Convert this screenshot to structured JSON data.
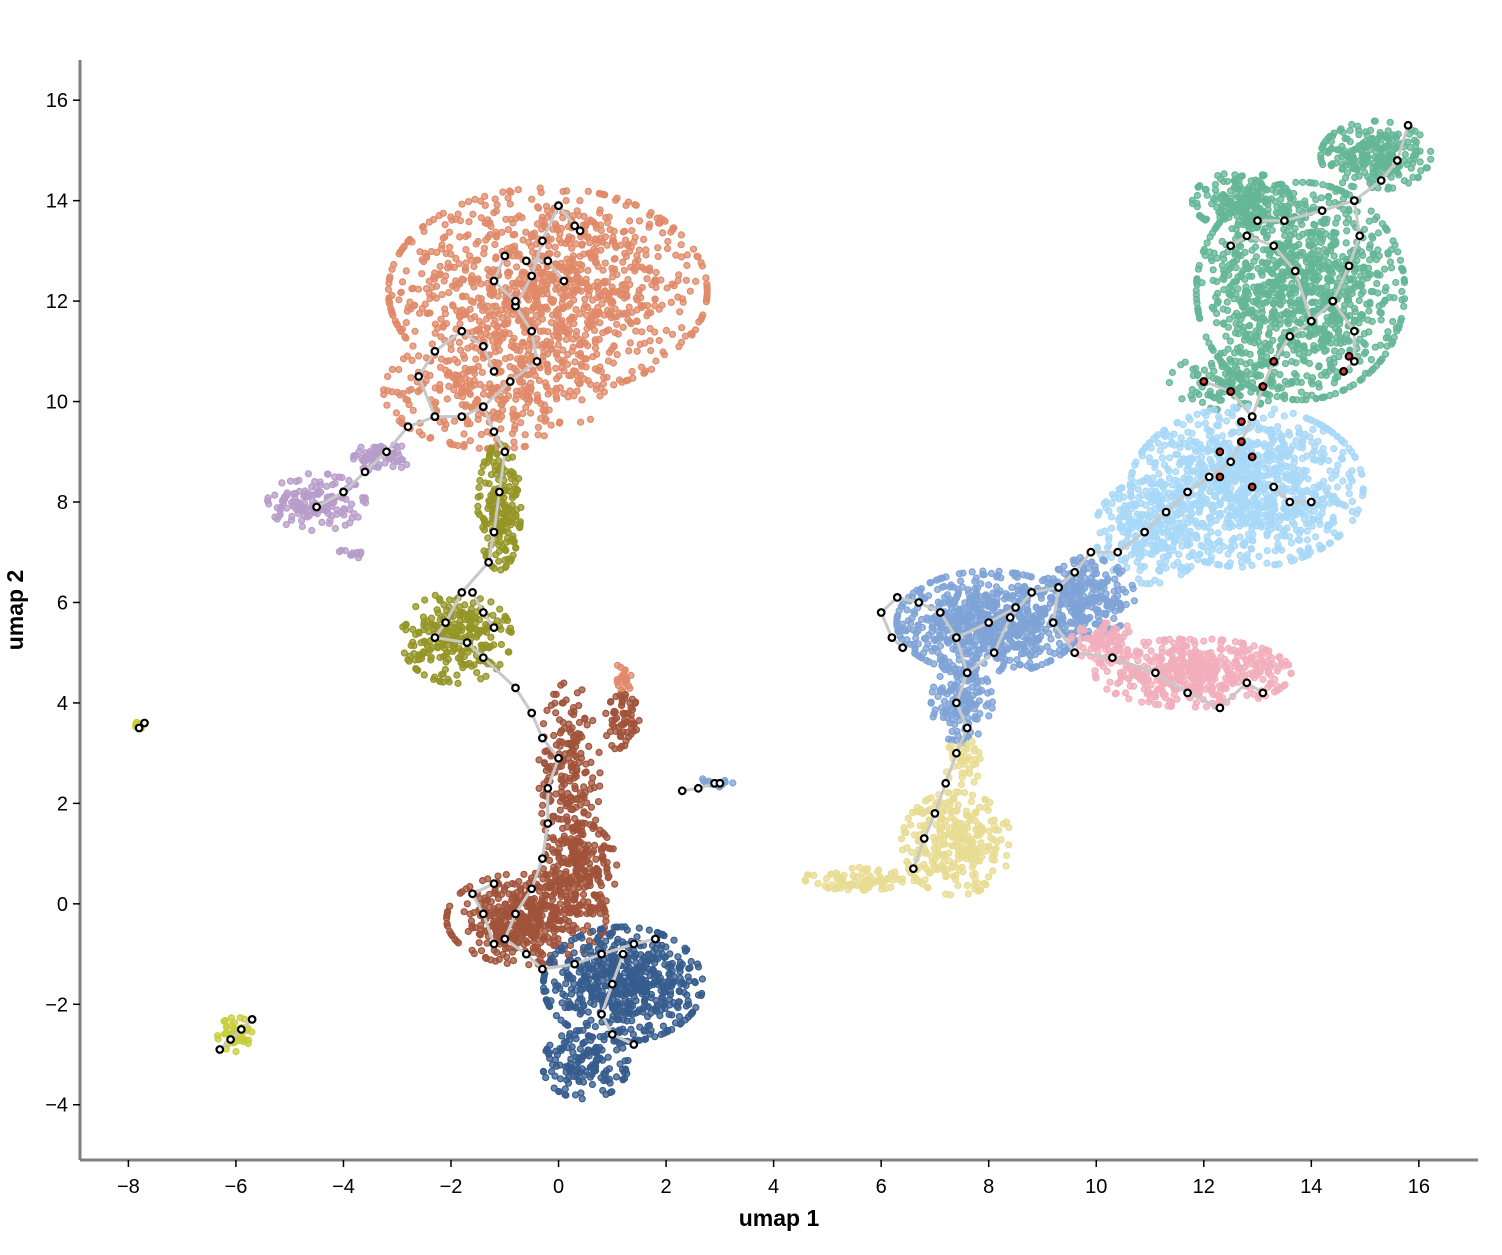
{
  "chart_data": {
    "type": "scatter",
    "title": "",
    "xlabel": "umap 1",
    "ylabel": "umap 2",
    "xlim": [
      -8.9,
      17.1
    ],
    "ylim": [
      -5.1,
      16.8
    ],
    "x_ticks": [
      -8,
      -6,
      -4,
      -2,
      0,
      2,
      4,
      6,
      8,
      10,
      12,
      14,
      16
    ],
    "y_ticks": [
      -4,
      -2,
      0,
      2,
      4,
      6,
      8,
      10,
      12,
      14,
      16
    ],
    "x_tick_labels": [
      "−8",
      "−6",
      "−4",
      "−2",
      "0",
      "2",
      "4",
      "6",
      "8",
      "10",
      "12",
      "14",
      "16"
    ],
    "y_tick_labels": [
      "−4",
      "−2",
      "0",
      "2",
      "4",
      "6",
      "8",
      "10",
      "12",
      "14",
      "16"
    ],
    "grid": false,
    "legend": "none",
    "clusters": [
      {
        "color": "#e08a6a",
        "blobs": [
          {
            "cx": -0.2,
            "cy": 12.2,
            "rx": 2.6,
            "ry": 1.8,
            "n": 1100
          },
          {
            "cx": -1.2,
            "cy": 10.2,
            "rx": 1.8,
            "ry": 1.0,
            "n": 300
          },
          {
            "cx": 1.2,
            "cy": 4.4,
            "rx": 0.15,
            "ry": 0.4,
            "n": 25
          }
        ]
      },
      {
        "color": "#b79cca",
        "blobs": [
          {
            "cx": -4.5,
            "cy": 8.0,
            "rx": 0.8,
            "ry": 0.5,
            "n": 150
          },
          {
            "cx": -3.3,
            "cy": 8.9,
            "rx": 0.5,
            "ry": 0.25,
            "n": 60
          },
          {
            "cx": -3.8,
            "cy": 7.0,
            "rx": 0.3,
            "ry": 0.1,
            "n": 12
          }
        ]
      },
      {
        "color": "#949526",
        "blobs": [
          {
            "cx": -1.1,
            "cy": 7.9,
            "rx": 0.35,
            "ry": 1.1,
            "n": 200
          },
          {
            "cx": -1.9,
            "cy": 5.3,
            "rx": 0.9,
            "ry": 0.8,
            "n": 260
          }
        ]
      },
      {
        "color": "#a0533a",
        "blobs": [
          {
            "cx": 0.2,
            "cy": 2.6,
            "rx": 0.5,
            "ry": 1.6,
            "n": 200
          },
          {
            "cx": -0.6,
            "cy": -0.3,
            "rx": 1.3,
            "ry": 0.8,
            "n": 450
          },
          {
            "cx": 0.4,
            "cy": 0.7,
            "rx": 0.6,
            "ry": 0.8,
            "n": 200
          },
          {
            "cx": 1.2,
            "cy": 3.6,
            "rx": 0.3,
            "ry": 0.5,
            "n": 60
          }
        ]
      },
      {
        "color": "#365c8d",
        "blobs": [
          {
            "cx": 1.2,
            "cy": -1.6,
            "rx": 1.3,
            "ry": 1.0,
            "n": 600
          },
          {
            "cx": 0.5,
            "cy": -3.2,
            "rx": 0.7,
            "ry": 0.6,
            "n": 150
          }
        ]
      },
      {
        "color": "#64b696",
        "blobs": [
          {
            "cx": 13.8,
            "cy": 12.2,
            "rx": 1.7,
            "ry": 1.9,
            "n": 1100
          },
          {
            "cx": 15.2,
            "cy": 14.9,
            "rx": 0.9,
            "ry": 0.6,
            "n": 250
          },
          {
            "cx": 12.7,
            "cy": 14.0,
            "rx": 0.8,
            "ry": 0.5,
            "n": 200
          },
          {
            "cx": 12.5,
            "cy": 10.4,
            "rx": 1.0,
            "ry": 0.5,
            "n": 120
          }
        ]
      },
      {
        "color": "#a8d8f8",
        "blobs": [
          {
            "cx": 12.8,
            "cy": 8.3,
            "rx": 1.9,
            "ry": 1.4,
            "n": 1000
          },
          {
            "cx": 11.0,
            "cy": 7.4,
            "rx": 0.9,
            "ry": 0.9,
            "n": 250
          }
        ]
      },
      {
        "color": "#7fa3d7",
        "blobs": [
          {
            "cx": 8.0,
            "cy": 5.6,
            "rx": 1.5,
            "ry": 0.9,
            "n": 700
          },
          {
            "cx": 9.8,
            "cy": 6.1,
            "rx": 0.8,
            "ry": 0.7,
            "n": 260
          },
          {
            "cx": 7.5,
            "cy": 4.0,
            "rx": 0.5,
            "ry": 0.7,
            "n": 150
          },
          {
            "cx": 2.9,
            "cy": 2.4,
            "rx": 0.3,
            "ry": 0.1,
            "n": 20
          }
        ]
      },
      {
        "color": "#f2aebb",
        "blobs": [
          {
            "cx": 11.8,
            "cy": 4.6,
            "rx": 1.6,
            "ry": 0.6,
            "n": 480
          },
          {
            "cx": 10.2,
            "cy": 5.2,
            "rx": 0.6,
            "ry": 0.35,
            "n": 80
          }
        ]
      },
      {
        "color": "#e8dc92",
        "blobs": [
          {
            "cx": 7.4,
            "cy": 1.2,
            "rx": 0.9,
            "ry": 0.9,
            "n": 300
          },
          {
            "cx": 5.6,
            "cy": 0.5,
            "rx": 0.9,
            "ry": 0.2,
            "n": 80
          },
          {
            "cx": 7.5,
            "cy": 2.8,
            "rx": 0.3,
            "ry": 0.5,
            "n": 40
          }
        ]
      },
      {
        "color": "#c8cd3c",
        "blobs": [
          {
            "cx": -6.0,
            "cy": -2.6,
            "rx": 0.3,
            "ry": 0.3,
            "n": 40
          },
          {
            "cx": -7.8,
            "cy": 3.55,
            "rx": 0.08,
            "ry": 0.08,
            "n": 8
          }
        ]
      }
    ],
    "trajectory": {
      "line_color": "#c8c8c8",
      "node_fill": "#ffffff",
      "node_stroke": "#000000",
      "highlight_fill": "#e03c28",
      "paths": [
        [
          [
            0.0,
            13.9
          ],
          [
            -0.3,
            13.2
          ],
          [
            -0.5,
            12.5
          ],
          [
            -0.8,
            11.9
          ],
          [
            -0.5,
            11.4
          ],
          [
            -0.4,
            10.8
          ],
          [
            -0.9,
            10.4
          ],
          [
            -1.4,
            9.9
          ],
          [
            -1.8,
            9.7
          ],
          [
            -2.3,
            9.7
          ],
          [
            -2.8,
            9.5
          ],
          [
            -3.2,
            9.0
          ],
          [
            -3.6,
            8.6
          ],
          [
            -4.0,
            8.2
          ],
          [
            -4.5,
            7.9
          ]
        ],
        [
          [
            0.0,
            13.9
          ],
          [
            0.3,
            13.5
          ],
          [
            0.4,
            13.4
          ]
        ],
        [
          [
            -2.3,
            9.7
          ],
          [
            -2.6,
            10.5
          ],
          [
            -2.3,
            11.0
          ],
          [
            -1.8,
            11.4
          ],
          [
            -1.4,
            11.1
          ],
          [
            -1.2,
            10.6
          ]
        ],
        [
          [
            -1.0,
            12.9
          ],
          [
            -1.2,
            12.4
          ],
          [
            -0.8,
            12.0
          ]
        ],
        [
          [
            -0.6,
            12.8
          ],
          [
            -0.2,
            12.8
          ],
          [
            0.1,
            12.4
          ]
        ],
        [
          [
            -1.4,
            9.9
          ],
          [
            -1.2,
            9.4
          ],
          [
            -1.0,
            9.0
          ],
          [
            -1.1,
            8.2
          ],
          [
            -1.2,
            7.4
          ],
          [
            -1.3,
            6.8
          ],
          [
            -1.8,
            6.2
          ],
          [
            -2.1,
            5.6
          ],
          [
            -2.3,
            5.3
          ],
          [
            -1.7,
            5.2
          ],
          [
            -1.4,
            4.9
          ],
          [
            -0.8,
            4.3
          ],
          [
            -0.5,
            3.8
          ],
          [
            -0.3,
            3.3
          ],
          [
            0.0,
            2.9
          ],
          [
            -0.2,
            2.3
          ],
          [
            -0.2,
            1.6
          ],
          [
            -0.3,
            0.9
          ],
          [
            -0.5,
            0.3
          ],
          [
            -0.8,
            -0.2
          ],
          [
            -1.0,
            -0.7
          ],
          [
            -0.6,
            -1.0
          ],
          [
            -0.3,
            -1.3
          ],
          [
            0.3,
            -1.2
          ],
          [
            0.8,
            -1.0
          ],
          [
            1.4,
            -0.8
          ],
          [
            1.8,
            -0.7
          ]
        ],
        [
          [
            -1.6,
            6.2
          ],
          [
            -1.4,
            5.8
          ],
          [
            -1.2,
            5.5
          ]
        ],
        [
          [
            1.2,
            -1.0
          ],
          [
            1.0,
            -1.6
          ],
          [
            0.8,
            -2.2
          ],
          [
            1.0,
            -2.6
          ],
          [
            1.4,
            -2.8
          ]
        ],
        [
          [
            -1.2,
            -0.8
          ],
          [
            -1.4,
            -0.2
          ],
          [
            -1.6,
            0.2
          ],
          [
            -1.2,
            0.4
          ]
        ],
        [
          [
            2.3,
            2.25
          ],
          [
            2.6,
            2.3
          ],
          [
            2.9,
            2.4
          ],
          [
            3.0,
            2.4
          ]
        ],
        [
          [
            -7.8,
            3.5
          ],
          [
            -7.7,
            3.6
          ]
        ],
        [
          [
            -6.3,
            -2.9
          ],
          [
            -6.1,
            -2.7
          ],
          [
            -5.9,
            -2.5
          ],
          [
            -5.7,
            -2.3
          ]
        ],
        [
          [
            6.6,
            0.7
          ],
          [
            6.8,
            1.3
          ],
          [
            7.0,
            1.8
          ],
          [
            7.2,
            2.4
          ],
          [
            7.4,
            3.0
          ],
          [
            7.6,
            3.5
          ],
          [
            7.4,
            4.0
          ],
          [
            7.6,
            4.6
          ],
          [
            7.4,
            5.3
          ],
          [
            7.1,
            5.8
          ],
          [
            6.7,
            6.0
          ],
          [
            6.3,
            6.1
          ],
          [
            6.0,
            5.8
          ],
          [
            6.2,
            5.3
          ],
          [
            6.4,
            5.1
          ]
        ],
        [
          [
            7.6,
            4.6
          ],
          [
            8.1,
            5.0
          ],
          [
            8.4,
            5.7
          ],
          [
            8.8,
            6.2
          ],
          [
            9.3,
            6.3
          ],
          [
            9.6,
            6.6
          ],
          [
            9.9,
            7.0
          ],
          [
            10.4,
            7.0
          ],
          [
            10.9,
            7.4
          ],
          [
            11.3,
            7.8
          ],
          [
            11.7,
            8.2
          ],
          [
            12.1,
            8.5
          ],
          [
            12.5,
            8.8
          ],
          [
            12.7,
            9.2
          ],
          [
            12.9,
            9.7
          ],
          [
            13.1,
            10.3
          ],
          [
            13.3,
            10.8
          ],
          [
            13.6,
            11.3
          ],
          [
            14.0,
            11.6
          ],
          [
            14.4,
            12.0
          ],
          [
            14.7,
            12.7
          ],
          [
            14.9,
            13.3
          ],
          [
            14.8,
            14.0
          ],
          [
            15.3,
            14.4
          ],
          [
            15.6,
            14.8
          ],
          [
            15.8,
            15.5
          ]
        ],
        [
          [
            9.3,
            6.3
          ],
          [
            9.2,
            5.6
          ],
          [
            9.6,
            5.0
          ],
          [
            10.3,
            4.9
          ],
          [
            11.1,
            4.6
          ],
          [
            11.7,
            4.2
          ],
          [
            12.3,
            3.9
          ],
          [
            12.8,
            4.4
          ],
          [
            13.1,
            4.2
          ]
        ],
        [
          [
            12.9,
            9.7
          ],
          [
            12.5,
            10.2
          ],
          [
            12.0,
            10.4
          ]
        ],
        [
          [
            13.3,
            8.3
          ],
          [
            13.6,
            8.0
          ],
          [
            14.0,
            8.0
          ]
        ],
        [
          [
            14.0,
            11.6
          ],
          [
            13.7,
            12.6
          ],
          [
            13.3,
            13.1
          ],
          [
            12.8,
            13.3
          ],
          [
            12.5,
            13.1
          ]
        ],
        [
          [
            14.8,
            14.0
          ],
          [
            14.2,
            13.8
          ],
          [
            13.5,
            13.6
          ],
          [
            13.0,
            13.6
          ]
        ],
        [
          [
            14.4,
            12.0
          ],
          [
            14.8,
            11.4
          ],
          [
            14.8,
            10.8
          ],
          [
            14.6,
            10.6
          ]
        ],
        [
          [
            7.4,
            5.3
          ],
          [
            8.0,
            5.6
          ],
          [
            8.5,
            5.9
          ]
        ]
      ],
      "highlight_nodes": [
        [
          12.0,
          10.4
        ],
        [
          12.5,
          10.2
        ],
        [
          12.7,
          9.2
        ],
        [
          12.3,
          9.0
        ],
        [
          12.9,
          8.9
        ],
        [
          12.3,
          8.5
        ],
        [
          12.9,
          8.3
        ],
        [
          13.1,
          10.3
        ],
        [
          13.3,
          10.8
        ],
        [
          14.6,
          10.6
        ],
        [
          14.7,
          10.9
        ],
        [
          12.7,
          9.6
        ]
      ]
    }
  }
}
